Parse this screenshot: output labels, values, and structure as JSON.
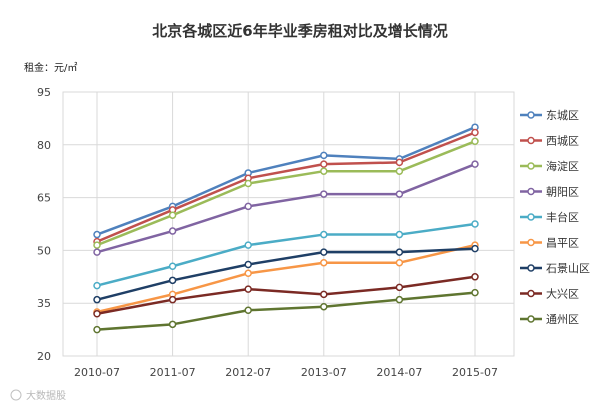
{
  "chart_data": {
    "type": "line",
    "title": "北京各城区近6年毕业季房租对比及增长情况",
    "unit_label": "租金：元/㎡",
    "categories": [
      "2010-07",
      "2011-07",
      "2012-07",
      "2013-07",
      "2014-07",
      "2015-07"
    ],
    "ylim": [
      20,
      95
    ],
    "yticks": [
      20,
      35,
      50,
      65,
      80,
      95
    ],
    "grid": true,
    "legend_position": "right",
    "series": [
      {
        "name": "东城区",
        "color": "#4f81bd",
        "values": [
          54.5,
          62.5,
          72,
          77,
          76,
          85
        ]
      },
      {
        "name": "西城区",
        "color": "#c0504d",
        "values": [
          52.5,
          61.5,
          70.5,
          74.5,
          75,
          83.5
        ]
      },
      {
        "name": "海淀区",
        "color": "#9bbb59",
        "values": [
          51.5,
          60,
          69,
          72.5,
          72.5,
          81
        ]
      },
      {
        "name": "朝阳区",
        "color": "#8064a2",
        "values": [
          49.5,
          55.5,
          62.5,
          66,
          66,
          74.5
        ]
      },
      {
        "name": "丰台区",
        "color": "#4bacc6",
        "values": [
          40,
          45.5,
          51.5,
          54.5,
          54.5,
          57.5
        ]
      },
      {
        "name": "昌平区",
        "color": "#f79646",
        "values": [
          32.5,
          37.5,
          43.5,
          46.5,
          46.5,
          51.5
        ]
      },
      {
        "name": "石景山区",
        "color": "#1f3f66",
        "values": [
          36,
          41.5,
          46,
          49.5,
          49.5,
          50.5
        ]
      },
      {
        "name": "大兴区",
        "color": "#7b2a24",
        "values": [
          32,
          36,
          39,
          37.5,
          39.5,
          42.5
        ]
      },
      {
        "name": "通州区",
        "color": "#5f7530",
        "values": [
          27.5,
          29,
          33,
          34,
          36,
          38
        ]
      }
    ]
  },
  "watermark": "大数据股"
}
